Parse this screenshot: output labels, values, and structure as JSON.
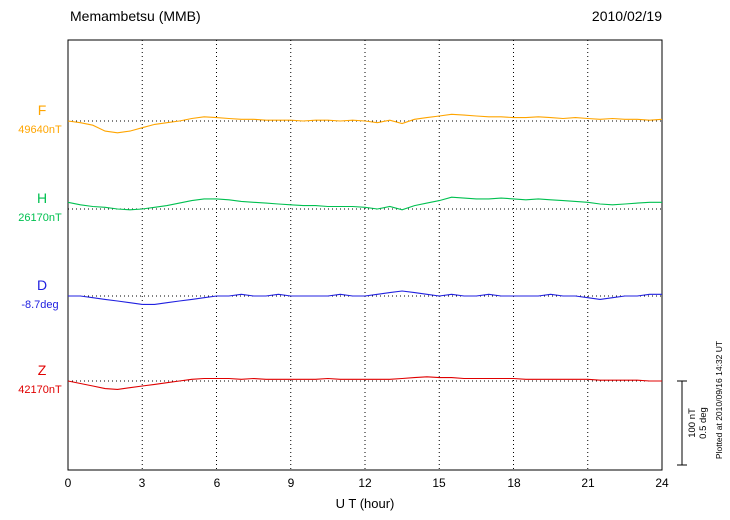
{
  "header": {
    "title": "Memambetsu (MMB)",
    "date": "2010/02/19"
  },
  "axes": {
    "x_label": "U T (hour)",
    "x_ticks": [
      "0",
      "3",
      "6",
      "9",
      "12",
      "15",
      "18",
      "21",
      "24"
    ]
  },
  "scale_bar": {
    "labels": [
      "100 nT",
      "0.5 deg"
    ]
  },
  "footer_note": "Plotted at 2010/09/16 14:32 UT",
  "chart_data": {
    "type": "line",
    "title": "Memambetsu (MMB) magnetogram 2010/02/19",
    "xlabel": "U T (hour)",
    "x_range": [
      0,
      24
    ],
    "x_step_hours": 0.5,
    "grid": "dotted vertical every 3 hours, dotted horizontal baseline per channel",
    "scale": {
      "nT_per_bar": 100,
      "deg_per_bar": 0.5
    },
    "series": [
      {
        "name": "F",
        "baseline_value": 49640,
        "baseline_label": "49640nT",
        "unit": "nT",
        "color": "#FFA500",
        "deviation": [
          0,
          -2,
          -5,
          -12,
          -14,
          -12,
          -8,
          -4,
          -2,
          0,
          3,
          5,
          4,
          3,
          2,
          2,
          1,
          1,
          1,
          0,
          1,
          1,
          0,
          1,
          0,
          -2,
          1,
          -3,
          2,
          4,
          6,
          8,
          7,
          6,
          5,
          5,
          4,
          4,
          5,
          4,
          3,
          4,
          3,
          2,
          3,
          2,
          2,
          1,
          2
        ]
      },
      {
        "name": "H",
        "baseline_value": 26170,
        "baseline_label": "26170nT",
        "unit": "nT",
        "color": "#00C050",
        "deviation": [
          8,
          5,
          3,
          2,
          0,
          -1,
          0,
          2,
          4,
          7,
          10,
          12,
          12,
          11,
          9,
          8,
          7,
          6,
          5,
          4,
          4,
          3,
          3,
          3,
          2,
          0,
          3,
          -1,
          4,
          7,
          10,
          14,
          13,
          12,
          12,
          13,
          12,
          11,
          12,
          11,
          10,
          9,
          8,
          6,
          5,
          6,
          7,
          8,
          8
        ]
      },
      {
        "name": "D",
        "baseline_value": -8.7,
        "baseline_label": "-8.7deg",
        "unit": "deg",
        "color": "#2020E0",
        "deviation": [
          0,
          0,
          -0.01,
          -0.02,
          -0.03,
          -0.04,
          -0.05,
          -0.05,
          -0.04,
          -0.03,
          -0.02,
          -0.01,
          0,
          0,
          0.01,
          0,
          0,
          0.01,
          0,
          0,
          0,
          0,
          0.01,
          0,
          0,
          0.01,
          0.02,
          0.03,
          0.02,
          0.01,
          0,
          0.01,
          0,
          0,
          0.01,
          0,
          0,
          0,
          0,
          0.01,
          0,
          0,
          -0.01,
          -0.02,
          -0.01,
          0,
          0,
          0.01,
          0.01
        ]
      },
      {
        "name": "Z",
        "baseline_value": 42170,
        "baseline_label": "42170nT",
        "unit": "nT",
        "color": "#E00000",
        "deviation": [
          0,
          -3,
          -6,
          -9,
          -10,
          -8,
          -6,
          -4,
          -2,
          0,
          2,
          3,
          3,
          3,
          2,
          3,
          2,
          2,
          2,
          2,
          2,
          3,
          2,
          2,
          2,
          2,
          2,
          3,
          4,
          5,
          4,
          4,
          3,
          3,
          3,
          3,
          3,
          2,
          2,
          2,
          2,
          2,
          2,
          1,
          1,
          1,
          1,
          0,
          0
        ]
      }
    ]
  }
}
